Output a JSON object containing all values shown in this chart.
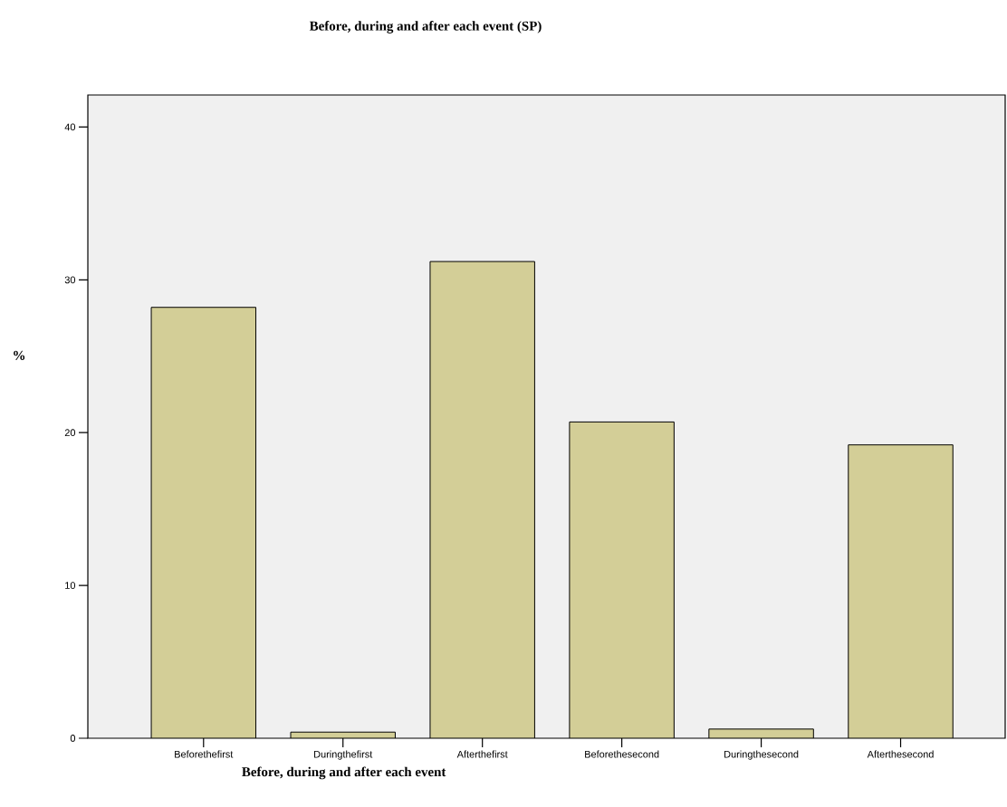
{
  "chart_data": {
    "type": "bar",
    "title": "Before, during and after each event (SP)",
    "xlabel": "Before, during and after each event",
    "ylabel": "%",
    "categories": [
      "Beforethefirst",
      "Duringthefirst",
      "Afterthefirst",
      "Beforethesecond",
      "Duringthesecond",
      "Afterthesecond"
    ],
    "values": [
      28.2,
      0.4,
      31.2,
      20.7,
      0.6,
      19.2
    ],
    "color": "#d3ce97",
    "ylim": [
      0,
      42.1
    ],
    "yticks": [
      0,
      10,
      20,
      30,
      40
    ],
    "grid": false
  }
}
